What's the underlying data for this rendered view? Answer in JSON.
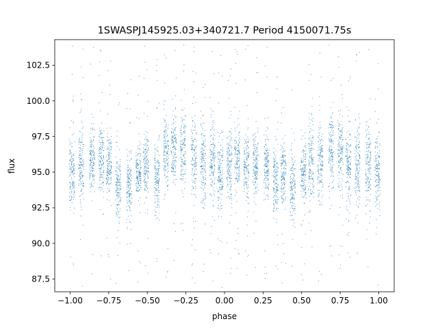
{
  "chart_data": {
    "type": "scatter",
    "title": "1SWASPJ145925.03+340721.7 Period 4150071.75s",
    "xlabel": "phase",
    "ylabel": "flux",
    "xlim": [
      -1.1,
      1.1
    ],
    "ylim": [
      86.6,
      104.3
    ],
    "grid": false,
    "marker_color": "#1f77b4",
    "x_ticks": [
      -1.0,
      -0.75,
      -0.5,
      -0.25,
      0.0,
      0.25,
      0.5,
      0.75,
      1.0
    ],
    "x_tick_labels": [
      "−1.00",
      "−0.75",
      "−0.50",
      "−0.25",
      "0.00",
      "0.25",
      "0.50",
      "0.75",
      "1.00"
    ],
    "y_ticks": [
      87.5,
      90.0,
      92.5,
      95.0,
      97.5,
      100.0,
      102.5
    ],
    "y_tick_labels": [
      "87.5",
      "90.0",
      "92.5",
      "95.0",
      "97.5",
      "100.0",
      "102.5"
    ],
    "band_phases": [
      -0.99,
      -0.93,
      -0.86,
      -0.8,
      -0.75,
      -0.69,
      -0.62,
      -0.56,
      -0.51,
      -0.44,
      -0.38,
      -0.33,
      -0.27,
      -0.2,
      -0.14,
      -0.08,
      -0.03,
      0.03,
      0.08,
      0.14,
      0.2,
      0.27,
      0.33,
      0.38,
      0.44,
      0.51,
      0.56,
      0.62,
      0.69,
      0.75,
      0.8,
      0.86,
      0.93,
      0.99
    ],
    "band_centers": [
      95.0,
      95.5,
      96.0,
      96.0,
      95.5,
      94.0,
      94.0,
      95.0,
      95.5,
      94.5,
      96.5,
      96.5,
      96.5,
      96.0,
      95.5,
      96.0,
      95.0,
      95.5,
      96.0,
      95.5,
      95.5,
      95.5,
      94.5,
      95.0,
      94.0,
      95.0,
      95.5,
      96.0,
      96.5,
      96.5,
      95.5,
      95.5,
      95.5,
      95.0
    ],
    "band_halfwidths": [
      2.5,
      2.5,
      2.0,
      2.0,
      1.8,
      2.0,
      2.0,
      1.5,
      2.0,
      2.0,
      2.5,
      2.5,
      2.5,
      2.5,
      2.5,
      2.5,
      2.5,
      2.5,
      2.0,
      2.0,
      1.8,
      1.8,
      2.0,
      2.0,
      2.0,
      2.0,
      2.5,
      2.5,
      2.5,
      2.5,
      2.5,
      2.5,
      2.5,
      2.5
    ]
  }
}
